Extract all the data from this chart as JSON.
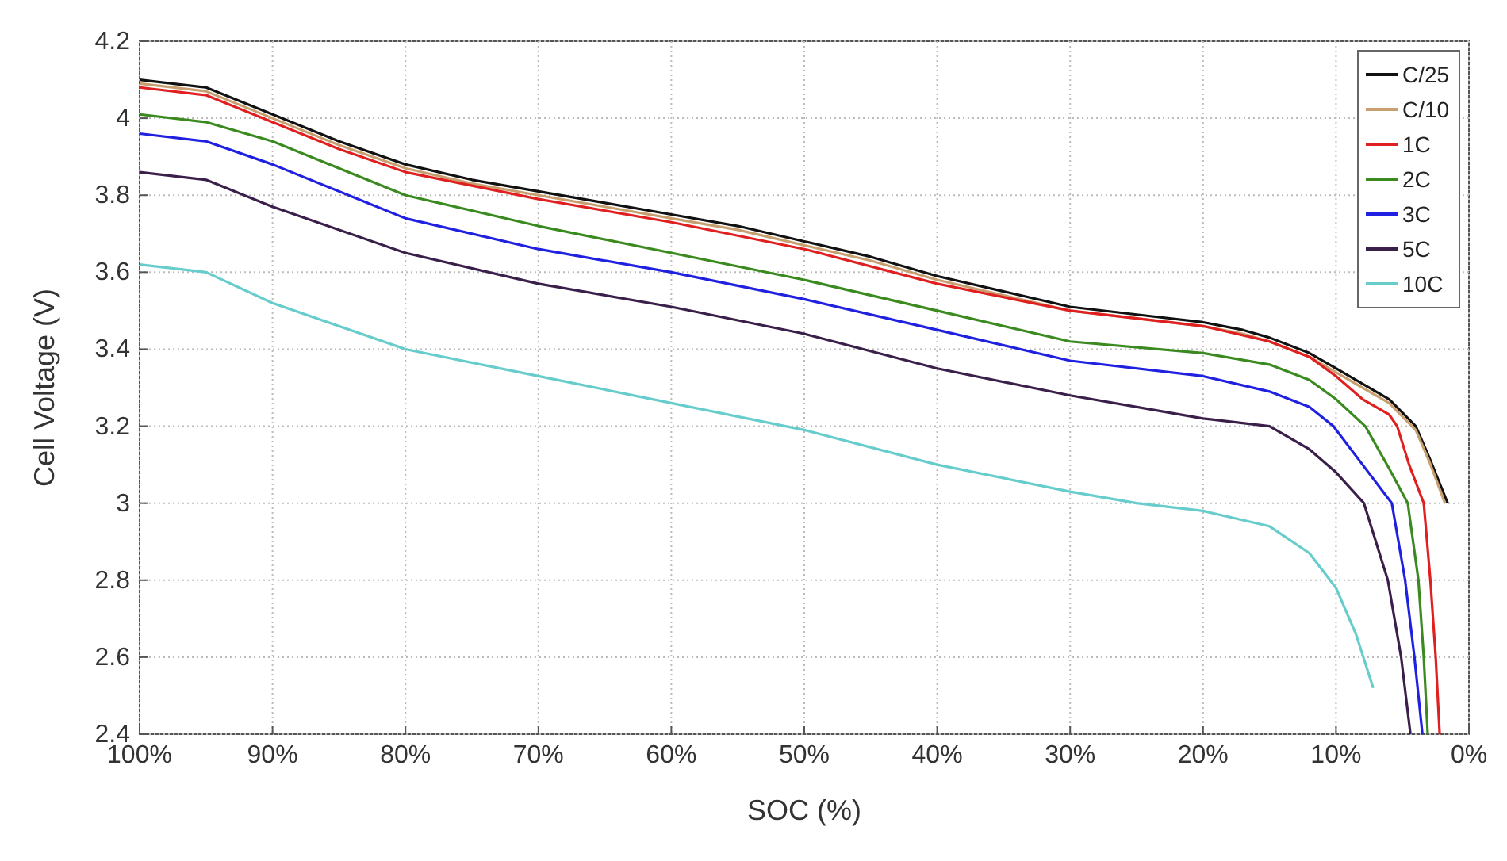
{
  "chart_data": {
    "type": "line",
    "xlabel": "SOC (%)",
    "ylabel": "Cell Voltage (V)",
    "xlim": [
      100,
      0
    ],
    "ylim": [
      2.4,
      4.2
    ],
    "xticks": [
      {
        "value": 100,
        "label": "100%"
      },
      {
        "value": 90,
        "label": "90%"
      },
      {
        "value": 80,
        "label": "80%"
      },
      {
        "value": 70,
        "label": "70%"
      },
      {
        "value": 60,
        "label": "60%"
      },
      {
        "value": 50,
        "label": "50%"
      },
      {
        "value": 40,
        "label": "40%"
      },
      {
        "value": 30,
        "label": "30%"
      },
      {
        "value": 20,
        "label": "20%"
      },
      {
        "value": 10,
        "label": "10%"
      },
      {
        "value": 0,
        "label": "0%"
      }
    ],
    "yticks": [
      2.4,
      2.6,
      2.8,
      3,
      3.2,
      3.4,
      3.6,
      3.8,
      4,
      4.2
    ],
    "grid": true,
    "legend": "top right",
    "line_style": "solid",
    "series": [
      {
        "name": "C/25",
        "color": "#111111",
        "x": [
          100,
          95,
          90,
          85,
          80,
          75,
          70,
          65,
          60,
          55,
          50,
          45,
          40,
          35,
          30,
          25,
          20,
          17,
          15,
          12,
          10,
          8,
          6,
          4,
          3,
          1.6
        ],
        "values": [
          4.1,
          4.08,
          4.01,
          3.94,
          3.88,
          3.84,
          3.81,
          3.78,
          3.75,
          3.72,
          3.68,
          3.64,
          3.59,
          3.55,
          3.51,
          3.49,
          3.47,
          3.45,
          3.43,
          3.39,
          3.35,
          3.31,
          3.27,
          3.2,
          3.12,
          3.0
        ]
      },
      {
        "name": "C/10",
        "color": "#c8a070",
        "x": [
          100,
          95,
          90,
          85,
          80,
          75,
          70,
          65,
          60,
          55,
          50,
          45,
          40,
          35,
          30,
          25,
          20,
          17,
          15,
          12,
          10,
          8,
          6,
          4,
          3,
          1.8
        ],
        "values": [
          4.09,
          4.07,
          4.0,
          3.93,
          3.87,
          3.83,
          3.8,
          3.77,
          3.74,
          3.71,
          3.67,
          3.63,
          3.58,
          3.54,
          3.5,
          3.48,
          3.46,
          3.44,
          3.42,
          3.38,
          3.34,
          3.3,
          3.26,
          3.19,
          3.11,
          3.0
        ]
      },
      {
        "name": "1C",
        "color": "#e02020",
        "x": [
          100,
          95,
          90,
          85,
          80,
          70,
          60,
          50,
          40,
          30,
          20,
          15,
          12,
          10,
          8,
          6,
          5.4,
          4.5,
          3.4,
          2.9,
          2.5,
          2.2
        ],
        "values": [
          4.08,
          4.06,
          3.99,
          3.92,
          3.86,
          3.79,
          3.73,
          3.66,
          3.57,
          3.5,
          3.46,
          3.42,
          3.38,
          3.33,
          3.27,
          3.23,
          3.2,
          3.1,
          3.0,
          2.8,
          2.6,
          2.4
        ]
      },
      {
        "name": "2C",
        "color": "#3a8a20",
        "x": [
          100,
          95,
          90,
          80,
          70,
          60,
          50,
          40,
          30,
          20,
          15,
          12,
          10,
          7.8,
          6,
          4.6,
          3.8,
          3.4,
          3.1
        ],
        "values": [
          4.01,
          3.99,
          3.94,
          3.8,
          3.72,
          3.65,
          3.58,
          3.5,
          3.42,
          3.39,
          3.36,
          3.32,
          3.27,
          3.2,
          3.09,
          3.0,
          2.8,
          2.6,
          2.4
        ]
      },
      {
        "name": "3C",
        "color": "#2020e0",
        "x": [
          100,
          95,
          90,
          80,
          70,
          60,
          50,
          40,
          30,
          20,
          15,
          12,
          10.2,
          8,
          5.8,
          4.8,
          4.1,
          3.5
        ],
        "values": [
          3.96,
          3.94,
          3.88,
          3.74,
          3.66,
          3.6,
          3.53,
          3.45,
          3.37,
          3.33,
          3.29,
          3.25,
          3.2,
          3.1,
          3.0,
          2.8,
          2.6,
          2.4
        ]
      },
      {
        "name": "5C",
        "color": "#3a1f4a",
        "x": [
          100,
          95,
          90,
          80,
          70,
          60,
          50,
          40,
          30,
          20,
          15,
          12,
          10,
          7.9,
          6.1,
          5.1,
          4.4
        ],
        "values": [
          3.86,
          3.84,
          3.77,
          3.65,
          3.57,
          3.51,
          3.44,
          3.35,
          3.28,
          3.22,
          3.2,
          3.14,
          3.08,
          3.0,
          2.8,
          2.6,
          2.4
        ]
      },
      {
        "name": "10C",
        "color": "#66cccc",
        "x": [
          100,
          95,
          90,
          80,
          70,
          60,
          50,
          40,
          30,
          25,
          20,
          15,
          12,
          10,
          8.5,
          7.2
        ],
        "values": [
          3.62,
          3.6,
          3.52,
          3.4,
          3.33,
          3.26,
          3.19,
          3.1,
          3.03,
          3.0,
          2.98,
          2.94,
          2.87,
          2.78,
          2.66,
          2.52
        ]
      }
    ]
  }
}
